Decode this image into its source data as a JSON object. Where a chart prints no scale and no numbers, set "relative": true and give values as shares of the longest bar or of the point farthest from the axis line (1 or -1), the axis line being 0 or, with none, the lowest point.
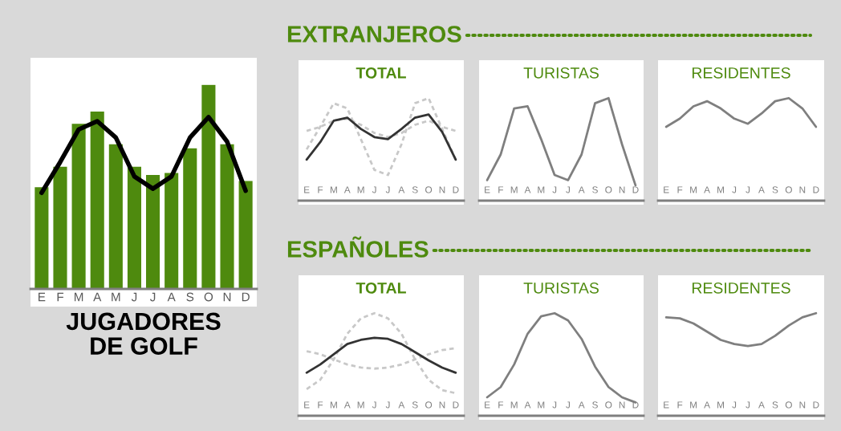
{
  "chart_data": [
    {
      "type": "bar",
      "title": "JUGADORES\nDE GOLF",
      "relative": true,
      "tick_labels": "x",
      "categories": [
        "E",
        "F",
        "M",
        "A",
        "M",
        "J",
        "J",
        "A",
        "S",
        "O",
        "N",
        "D"
      ],
      "series": [
        {
          "type": "bar",
          "color": "#4e8a0e",
          "values": [
            0.5,
            0.6,
            0.81,
            0.87,
            0.71,
            0.6,
            0.56,
            0.57,
            0.69,
            1.0,
            0.71,
            0.53
          ]
        },
        {
          "type": "line",
          "color": "#000000",
          "values": [
            0.47,
            0.62,
            0.78,
            0.82,
            0.74,
            0.55,
            0.49,
            0.55,
            0.74,
            0.84,
            0.72,
            0.48
          ]
        }
      ]
    },
    {
      "type": "line",
      "title": "TOTAL",
      "subtitle": "EXTRANJEROS",
      "relative": true,
      "tick_labels": "x",
      "categories": [
        "E",
        "F",
        "M",
        "A",
        "M",
        "J",
        "J",
        "A",
        "S",
        "O",
        "N",
        "D"
      ],
      "series": [
        {
          "color": "#c8c8c8",
          "line_style": "dashed",
          "values": [
            0.5,
            0.72,
            0.95,
            0.9,
            0.6,
            0.3,
            0.25,
            0.55,
            0.95,
            1.0,
            0.7,
            0.4
          ]
        },
        {
          "color": "#c8c8c8",
          "line_style": "dashed",
          "values": [
            0.68,
            0.72,
            0.78,
            0.8,
            0.74,
            0.66,
            0.62,
            0.66,
            0.74,
            0.78,
            0.72,
            0.68
          ]
        },
        {
          "color": "#333333",
          "line_style": "solid",
          "values": [
            0.4,
            0.57,
            0.78,
            0.81,
            0.7,
            0.62,
            0.6,
            0.7,
            0.81,
            0.84,
            0.67,
            0.4
          ]
        }
      ]
    },
    {
      "type": "line",
      "title": "TURISTAS",
      "relative": true,
      "tick_labels": "x",
      "categories": [
        "E",
        "F",
        "M",
        "A",
        "M",
        "J",
        "J",
        "A",
        "S",
        "O",
        "N",
        "D"
      ],
      "series": [
        {
          "color": "#7f7f7f",
          "line_style": "solid",
          "values": [
            0.2,
            0.45,
            0.9,
            0.92,
            0.6,
            0.25,
            0.2,
            0.45,
            0.95,
            1.0,
            0.55,
            0.15
          ]
        }
      ]
    },
    {
      "type": "line",
      "title": "RESIDENTES",
      "relative": true,
      "tick_labels": "x",
      "categories": [
        "E",
        "F",
        "M",
        "A",
        "M",
        "J",
        "J",
        "A",
        "S",
        "O",
        "N",
        "D"
      ],
      "series": [
        {
          "color": "#7f7f7f",
          "line_style": "solid",
          "values": [
            0.72,
            0.8,
            0.92,
            0.97,
            0.9,
            0.8,
            0.75,
            0.85,
            0.97,
            1.0,
            0.9,
            0.72
          ]
        }
      ]
    },
    {
      "type": "line",
      "title": "TOTAL",
      "subtitle": "ESPAÑOLES",
      "relative": true,
      "tick_labels": "x",
      "categories": [
        "E",
        "F",
        "M",
        "A",
        "M",
        "J",
        "J",
        "A",
        "S",
        "O",
        "N",
        "D"
      ],
      "series": [
        {
          "color": "#c8c8c8",
          "line_style": "dashed",
          "values": [
            0.26,
            0.35,
            0.55,
            0.8,
            0.95,
            1.0,
            0.95,
            0.8,
            0.55,
            0.35,
            0.25,
            0.22
          ]
        },
        {
          "color": "#c8c8c8",
          "line_style": "dashed",
          "values": [
            0.63,
            0.6,
            0.55,
            0.5,
            0.47,
            0.46,
            0.47,
            0.5,
            0.55,
            0.6,
            0.64,
            0.66
          ]
        },
        {
          "color": "#333333",
          "line_style": "solid",
          "values": [
            0.42,
            0.5,
            0.6,
            0.7,
            0.74,
            0.76,
            0.75,
            0.7,
            0.62,
            0.54,
            0.47,
            0.42
          ]
        }
      ]
    },
    {
      "type": "line",
      "title": "TURISTAS",
      "relative": true,
      "tick_labels": "x",
      "categories": [
        "E",
        "F",
        "M",
        "A",
        "M",
        "J",
        "J",
        "A",
        "S",
        "O",
        "N",
        "D"
      ],
      "series": [
        {
          "color": "#7f7f7f",
          "line_style": "solid",
          "values": [
            0.18,
            0.28,
            0.5,
            0.8,
            0.97,
            1.0,
            0.93,
            0.75,
            0.48,
            0.28,
            0.18,
            0.13
          ]
        }
      ]
    },
    {
      "type": "line",
      "title": "RESIDENTES",
      "relative": true,
      "tick_labels": "x",
      "categories": [
        "E",
        "F",
        "M",
        "A",
        "M",
        "J",
        "J",
        "A",
        "S",
        "O",
        "N",
        "D"
      ],
      "series": [
        {
          "color": "#7f7f7f",
          "line_style": "solid",
          "values": [
            0.96,
            0.95,
            0.9,
            0.82,
            0.74,
            0.7,
            0.68,
            0.7,
            0.78,
            0.88,
            0.96,
            1.0
          ]
        }
      ]
    }
  ]
}
